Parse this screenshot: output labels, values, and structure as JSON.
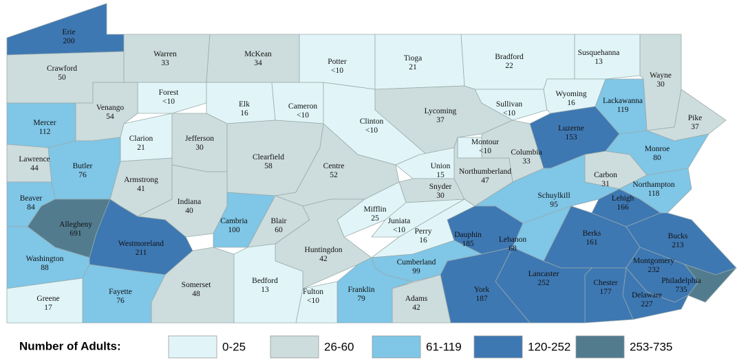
{
  "map": {
    "legend": {
      "title": "Number of Adults:",
      "bins": [
        {
          "label": "0-25",
          "color": "#e1f5f8"
        },
        {
          "label": "26-60",
          "color": "#cddcdc"
        },
        {
          "label": "61-119",
          "color": "#7fc6e7"
        },
        {
          "label": "120-252",
          "color": "#3e78b3"
        },
        {
          "label": "253-735",
          "color": "#527c8e"
        }
      ]
    },
    "counties": [
      {
        "name": "Erie",
        "value": 200,
        "color": "#3e78b3"
      },
      {
        "name": "Crawford",
        "value": 50,
        "color": "#cddcdc"
      },
      {
        "name": "Warren",
        "value": 33,
        "color": "#cddcdc"
      },
      {
        "name": "McKean",
        "value": 34,
        "color": "#cddcdc"
      },
      {
        "name": "Potter",
        "value": "<10",
        "color": "#e1f5f8"
      },
      {
        "name": "Tioga",
        "value": 21,
        "color": "#e1f5f8"
      },
      {
        "name": "Bradford",
        "value": 22,
        "color": "#e1f5f8"
      },
      {
        "name": "Susquehanna",
        "value": 13,
        "color": "#e1f5f8"
      },
      {
        "name": "Wayne",
        "value": 30,
        "color": "#cddcdc"
      },
      {
        "name": "Forest",
        "value": "<10",
        "color": "#e1f5f8"
      },
      {
        "name": "Venango",
        "value": 54,
        "color": "#cddcdc"
      },
      {
        "name": "Mercer",
        "value": 112,
        "color": "#7fc6e7"
      },
      {
        "name": "Elk",
        "value": 16,
        "color": "#e1f5f8"
      },
      {
        "name": "Cameron",
        "value": "<10",
        "color": "#e1f5f8"
      },
      {
        "name": "Clinton",
        "value": "<10",
        "color": "#e1f5f8"
      },
      {
        "name": "Lycoming",
        "value": 37,
        "color": "#cddcdc"
      },
      {
        "name": "Sullivan",
        "value": "<10",
        "color": "#e1f5f8"
      },
      {
        "name": "Wyoming",
        "value": 16,
        "color": "#e1f5f8"
      },
      {
        "name": "Lackawanna",
        "value": 119,
        "color": "#7fc6e7"
      },
      {
        "name": "Pike",
        "value": 37,
        "color": "#cddcdc"
      },
      {
        "name": "Clarion",
        "value": 21,
        "color": "#e1f5f8"
      },
      {
        "name": "Jefferson",
        "value": 30,
        "color": "#cddcdc"
      },
      {
        "name": "Clearfield",
        "value": 58,
        "color": "#cddcdc"
      },
      {
        "name": "Centre",
        "value": 52,
        "color": "#cddcdc"
      },
      {
        "name": "Union",
        "value": 15,
        "color": "#e1f5f8"
      },
      {
        "name": "Snyder",
        "value": 30,
        "color": "#cddcdc"
      },
      {
        "name": "Montour",
        "value": "<10",
        "color": "#e1f5f8"
      },
      {
        "name": "Northumberland",
        "value": 47,
        "color": "#cddcdc"
      },
      {
        "name": "Columbia",
        "value": 33,
        "color": "#cddcdc"
      },
      {
        "name": "Luzerne",
        "value": 153,
        "color": "#3e78b3"
      },
      {
        "name": "Monroe",
        "value": 80,
        "color": "#7fc6e7"
      },
      {
        "name": "Carbon",
        "value": 31,
        "color": "#cddcdc"
      },
      {
        "name": "Northampton",
        "value": 118,
        "color": "#7fc6e7"
      },
      {
        "name": "Schuylkill",
        "value": 95,
        "color": "#7fc6e7"
      },
      {
        "name": "Lehigh",
        "value": 166,
        "color": "#3e78b3"
      },
      {
        "name": "Lawrence",
        "value": 44,
        "color": "#cddcdc"
      },
      {
        "name": "Butler",
        "value": 76,
        "color": "#7fc6e7"
      },
      {
        "name": "Armstrong",
        "value": 41,
        "color": "#cddcdc"
      },
      {
        "name": "Beaver",
        "value": 84,
        "color": "#7fc6e7"
      },
      {
        "name": "Indiana",
        "value": 40,
        "color": "#cddcdc"
      },
      {
        "name": "Allegheny",
        "value": 691,
        "color": "#527c8e"
      },
      {
        "name": "Westmoreland",
        "value": 211,
        "color": "#3e78b3"
      },
      {
        "name": "Washington",
        "value": 88,
        "color": "#7fc6e7"
      },
      {
        "name": "Cambria",
        "value": 100,
        "color": "#7fc6e7"
      },
      {
        "name": "Blair",
        "value": 60,
        "color": "#cddcdc"
      },
      {
        "name": "Mifflin",
        "value": 25,
        "color": "#e1f5f8"
      },
      {
        "name": "Juniata",
        "value": "<10",
        "color": "#e1f5f8"
      },
      {
        "name": "Perry",
        "value": 16,
        "color": "#e1f5f8"
      },
      {
        "name": "Huntingdon",
        "value": 42,
        "color": "#cddcdc"
      },
      {
        "name": "Dauphin",
        "value": 185,
        "color": "#3e78b3"
      },
      {
        "name": "Lebanon",
        "value": 68,
        "color": "#7fc6e7"
      },
      {
        "name": "Berks",
        "value": 161,
        "color": "#3e78b3"
      },
      {
        "name": "Bucks",
        "value": 213,
        "color": "#3e78b3"
      },
      {
        "name": "Montgomery",
        "value": 232,
        "color": "#3e78b3"
      },
      {
        "name": "Philadelphia",
        "value": 735,
        "color": "#527c8e"
      },
      {
        "name": "Delaware",
        "value": 227,
        "color": "#3e78b3"
      },
      {
        "name": "Chester",
        "value": 177,
        "color": "#3e78b3"
      },
      {
        "name": "Lancaster",
        "value": 252,
        "color": "#3e78b3"
      },
      {
        "name": "York",
        "value": 187,
        "color": "#3e78b3"
      },
      {
        "name": "Cumberland",
        "value": 99,
        "color": "#7fc6e7"
      },
      {
        "name": "Adams",
        "value": 42,
        "color": "#cddcdc"
      },
      {
        "name": "Franklin",
        "value": 79,
        "color": "#7fc6e7"
      },
      {
        "name": "Fulton",
        "value": "<10",
        "color": "#e1f5f8"
      },
      {
        "name": "Bedford",
        "value": 13,
        "color": "#e1f5f8"
      },
      {
        "name": "Somerset",
        "value": 48,
        "color": "#cddcdc"
      },
      {
        "name": "Fayette",
        "value": 76,
        "color": "#7fc6e7"
      },
      {
        "name": "Greene",
        "value": 17,
        "color": "#e1f5f8"
      }
    ]
  }
}
